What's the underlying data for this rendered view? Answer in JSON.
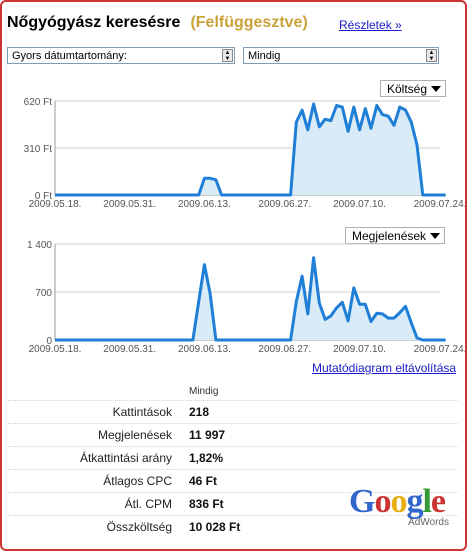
{
  "header": {
    "title": "Nőgyógyász keresésre",
    "status": "(Felfüggesztve)",
    "details_link": "Részletek »"
  },
  "filters": {
    "date_range_label": "Gyors dátumtartomány:",
    "date_range_value": "Mindig"
  },
  "colors": {
    "frame": "#cc3333",
    "status": "#c9a23a",
    "link": "#1a1acc",
    "series_line": "#1f7ed6",
    "series_fill": "#d9ebf7"
  },
  "icons": [
    "dropdown-arrow-icon",
    "google-adwords-logo"
  ],
  "chart_data": [
    {
      "type": "area",
      "metric_selector": "Költség",
      "yticks": [
        "0 Ft",
        "310 Ft",
        "620 Ft"
      ],
      "ylim": [
        0,
        620
      ],
      "x_tick_labels": [
        "2009.05.18.",
        "2009.05.31.",
        "2009.06.13.",
        "2009.06.27.",
        "2009.07.10.",
        "2009.07.24."
      ],
      "x": [
        "2009.05.18.",
        "2009.06.11.",
        "2009.06.12.",
        "2009.06.13.",
        "2009.06.14.",
        "2009.06.15.",
        "2009.06.16.",
        "2009.06.27.",
        "2009.06.28.",
        "2009.06.29.",
        "2009.06.30.",
        "2009.07.01.",
        "2009.07.02.",
        "2009.07.03.",
        "2009.07.04.",
        "2009.07.05.",
        "2009.07.06.",
        "2009.07.07.",
        "2009.07.08.",
        "2009.07.09.",
        "2009.07.10.",
        "2009.07.11.",
        "2009.07.12.",
        "2009.07.13.",
        "2009.07.14.",
        "2009.07.15.",
        "2009.07.16.",
        "2009.07.17.",
        "2009.07.18.",
        "2009.07.19.",
        "2009.07.20.",
        "2009.07.21.",
        "2009.07.22.",
        "2009.07.23.",
        "2009.07.24.",
        "2009.07.25."
      ],
      "values": [
        0,
        0,
        0,
        110,
        110,
        100,
        0,
        0,
        0,
        480,
        560,
        430,
        600,
        450,
        500,
        490,
        590,
        580,
        420,
        580,
        430,
        570,
        440,
        590,
        530,
        520,
        460,
        580,
        560,
        480,
        330,
        0,
        0,
        0,
        0,
        0
      ]
    },
    {
      "type": "area",
      "metric_selector": "Megjelenések",
      "yticks": [
        "0",
        "700",
        "1 400"
      ],
      "ylim": [
        0,
        1400
      ],
      "x_tick_labels": [
        "2009.05.18.",
        "2009.05.31.",
        "2009.06.13.",
        "2009.06.27.",
        "2009.07.10.",
        "2009.07.24."
      ],
      "x": [
        "2009.05.18.",
        "2009.06.08.",
        "2009.06.11.",
        "2009.06.12.",
        "2009.06.13.",
        "2009.06.14.",
        "2009.06.15.",
        "2009.06.27.",
        "2009.06.28.",
        "2009.06.29.",
        "2009.06.30.",
        "2009.07.01.",
        "2009.07.02.",
        "2009.07.03.",
        "2009.07.04.",
        "2009.07.05.",
        "2009.07.06.",
        "2009.07.07.",
        "2009.07.08.",
        "2009.07.09.",
        "2009.07.10.",
        "2009.07.11.",
        "2009.07.12.",
        "2009.07.13.",
        "2009.07.14.",
        "2009.07.15.",
        "2009.07.16.",
        "2009.07.17.",
        "2009.07.18.",
        "2009.07.19.",
        "2009.07.20.",
        "2009.07.21.",
        "2009.07.22.",
        "2009.07.23.",
        "2009.07.24.",
        "2009.07.25."
      ],
      "values": [
        0,
        0,
        0,
        560,
        1100,
        680,
        0,
        0,
        0,
        560,
        930,
        380,
        1200,
        540,
        300,
        350,
        470,
        550,
        280,
        760,
        520,
        520,
        270,
        390,
        380,
        320,
        320,
        400,
        490,
        250,
        30,
        0,
        0,
        0,
        0,
        0
      ]
    }
  ],
  "remove_chart_link": "Mutatódiagram eltávolítása",
  "stats": {
    "column_header": "Mindig",
    "rows": [
      {
        "label": "Kattintások",
        "value": "218"
      },
      {
        "label": "Megjelenések",
        "value": "11 997"
      },
      {
        "label": "Átkattintási arány",
        "value": "1,82%"
      },
      {
        "label": "Átlagos CPC",
        "value": "46 Ft"
      },
      {
        "label": "Átl. CPM",
        "value": "836 Ft"
      },
      {
        "label": "Összköltség",
        "value": "10 028 Ft"
      }
    ]
  },
  "logo": {
    "text": "Google",
    "letter_colors": [
      "#3366cc",
      "#cc3333",
      "#e8b012",
      "#3366cc",
      "#339933",
      "#cc3333"
    ],
    "subtext": "AdWords"
  }
}
